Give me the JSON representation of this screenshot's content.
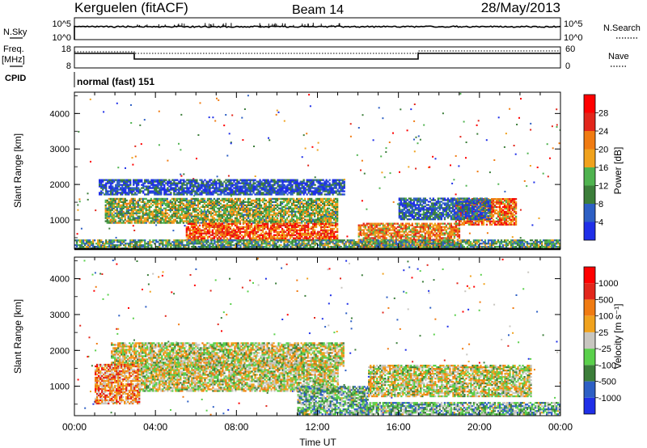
{
  "header": {
    "station": "Kerguelen (fitACF)",
    "beam": "Beam 14",
    "date": "28/May/2013"
  },
  "strips": {
    "nsky_label": "N.Sky",
    "nsky_ticks": [
      "10^5",
      "10^0"
    ],
    "nsearch_label": "N.Search",
    "freq_label": "Freq.",
    "freq_unit": "[MHz]",
    "freq_ticks": [
      "18",
      "8"
    ],
    "nave_label": "Nave",
    "nave_ticks": [
      "60",
      "0"
    ],
    "cpid_label": "CPID",
    "cpid_value": "normal (fast) 151"
  },
  "chart_data": [
    {
      "type": "heatmap",
      "name": "power",
      "ylabel": "Slant Range [km]",
      "xlabel": "",
      "x_range_hours": [
        0,
        24
      ],
      "ylim": [
        180,
        4600
      ],
      "y_ticks": [
        "4000",
        "3000",
        "2000",
        "1000"
      ],
      "colorbar_label": "Power [dB]",
      "colorbar_ticks": [
        "28",
        "24",
        "20",
        "16",
        "12",
        "8",
        "4"
      ],
      "colors": [
        "#1f2fe8",
        "#2d5fc4",
        "#3c7e3a",
        "#4fb34f",
        "#f0a21d",
        "#f07b12",
        "#e2261b",
        "#ff0000"
      ],
      "regions": [
        {
          "t0": 1.2,
          "t1": 13.3,
          "r0": 1700,
          "r1": 2150,
          "level": 0.15
        },
        {
          "t0": 1.5,
          "t1": 13.0,
          "r0": 900,
          "r1": 1600,
          "level": 0.45
        },
        {
          "t0": 5.5,
          "t1": 13.0,
          "r0": 420,
          "r1": 900,
          "level": 0.75
        },
        {
          "t0": 18.8,
          "t1": 21.8,
          "r0": 850,
          "r1": 1600,
          "level": 0.7
        },
        {
          "t0": 14.0,
          "t1": 19.0,
          "r0": 200,
          "r1": 900,
          "level": 0.65
        },
        {
          "t0": 16.0,
          "t1": 20.5,
          "r0": 1000,
          "r1": 1600,
          "level": 0.2
        },
        {
          "t0": 0.0,
          "t1": 24.0,
          "r0": 180,
          "r1": 420,
          "level": 0.35
        }
      ]
    },
    {
      "type": "heatmap",
      "name": "velocity",
      "ylabel": "Slant Range [km]",
      "xlabel": "Time UT",
      "x_range_hours": [
        0,
        24
      ],
      "x_ticks": [
        "00:00",
        "04:00",
        "08:00",
        "12:00",
        "16:00",
        "20:00",
        "00:00"
      ],
      "ylim": [
        180,
        4600
      ],
      "y_ticks": [
        "4000",
        "3000",
        "2000",
        "1000"
      ],
      "colorbar_label": "Velocity [m s⁻¹]",
      "colorbar_ticks": [
        "1000",
        "500",
        "100",
        "25",
        "-25",
        "-100",
        "-500",
        "-1000"
      ],
      "colors": [
        "#1f2fe8",
        "#2d5fc4",
        "#3c7e3a",
        "#5ad04b",
        "#c8c6c0",
        "#f0a21d",
        "#f07b12",
        "#e2261b",
        "#ff0000"
      ],
      "regions": [
        {
          "t0": 1.8,
          "t1": 13.3,
          "r0": 1550,
          "r1": 2200,
          "level": 0.5
        },
        {
          "t0": 1.0,
          "t1": 3.2,
          "r0": 500,
          "r1": 1600,
          "level": 0.68
        },
        {
          "t0": 3.2,
          "t1": 13.0,
          "r0": 850,
          "r1": 1600,
          "level": 0.5
        },
        {
          "t0": 11.0,
          "t1": 14.5,
          "r0": 200,
          "r1": 1000,
          "level": 0.35
        },
        {
          "t0": 14.0,
          "t1": 24.0,
          "r0": 200,
          "r1": 550,
          "level": 0.35
        },
        {
          "t0": 14.5,
          "t1": 22.5,
          "r0": 700,
          "r1": 1600,
          "level": 0.5
        }
      ]
    }
  ]
}
